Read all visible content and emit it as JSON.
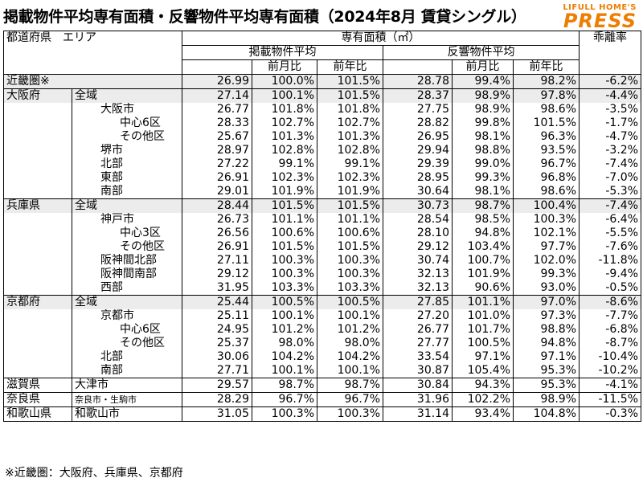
{
  "title": "掲載物件平均専有面積・反響物件平均専有面積（2024年8月 賃貸シングル）",
  "logo": {
    "top": "LIFULL HOME'S",
    "main": "PRESS",
    "color": "#ef7d00"
  },
  "header": {
    "col_region": "都道府県　エリア",
    "col_area": "専有面積（㎡）",
    "col_listed": "掲載物件平均",
    "col_inquiry": "反響物件平均",
    "col_mom": "前月比",
    "col_yoy": "前年比",
    "col_gap": "乖離率"
  },
  "rows": [
    {
      "pref": "近畿圏※",
      "area": "",
      "listed": "26.99",
      "l_mom": "100.0%",
      "l_yoy": "101.5%",
      "inq": "28.78",
      "i_mom": "99.4%",
      "i_yoy": "98.2%",
      "gap": "-6.2%"
    },
    {
      "pref": "大阪府",
      "area": "全域",
      "listed": "27.14",
      "l_mom": "100.1%",
      "l_yoy": "101.5%",
      "inq": "28.37",
      "i_mom": "98.9%",
      "i_yoy": "97.8%",
      "gap": "-4.4%"
    },
    {
      "pref": "",
      "area": "大阪市",
      "listed": "26.77",
      "l_mom": "101.8%",
      "l_yoy": "101.8%",
      "inq": "27.75",
      "i_mom": "98.9%",
      "i_yoy": "98.6%",
      "gap": "-3.5%"
    },
    {
      "pref": "",
      "area": "中心6区",
      "listed": "28.33",
      "l_mom": "102.7%",
      "l_yoy": "102.7%",
      "inq": "28.82",
      "i_mom": "99.8%",
      "i_yoy": "101.5%",
      "gap": "-1.7%"
    },
    {
      "pref": "",
      "area": "その他区",
      "listed": "25.67",
      "l_mom": "101.3%",
      "l_yoy": "101.3%",
      "inq": "26.95",
      "i_mom": "98.1%",
      "i_yoy": "96.3%",
      "gap": "-4.7%"
    },
    {
      "pref": "",
      "area": "堺市",
      "listed": "28.97",
      "l_mom": "102.8%",
      "l_yoy": "102.8%",
      "inq": "29.94",
      "i_mom": "98.8%",
      "i_yoy": "93.5%",
      "gap": "-3.2%"
    },
    {
      "pref": "",
      "area": "北部",
      "listed": "27.22",
      "l_mom": "99.1%",
      "l_yoy": "99.1%",
      "inq": "29.39",
      "i_mom": "99.0%",
      "i_yoy": "96.7%",
      "gap": "-7.4%"
    },
    {
      "pref": "",
      "area": "東部",
      "listed": "26.91",
      "l_mom": "102.3%",
      "l_yoy": "102.3%",
      "inq": "28.95",
      "i_mom": "99.3%",
      "i_yoy": "96.8%",
      "gap": "-7.0%"
    },
    {
      "pref": "",
      "area": "南部",
      "listed": "29.01",
      "l_mom": "101.9%",
      "l_yoy": "101.9%",
      "inq": "30.64",
      "i_mom": "98.1%",
      "i_yoy": "98.6%",
      "gap": "-5.3%"
    },
    {
      "pref": "兵庫県",
      "area": "全域",
      "listed": "28.44",
      "l_mom": "101.5%",
      "l_yoy": "101.5%",
      "inq": "30.73",
      "i_mom": "98.7%",
      "i_yoy": "100.4%",
      "gap": "-7.4%"
    },
    {
      "pref": "",
      "area": "神戸市",
      "listed": "26.73",
      "l_mom": "101.1%",
      "l_yoy": "101.1%",
      "inq": "28.54",
      "i_mom": "98.5%",
      "i_yoy": "100.3%",
      "gap": "-6.4%"
    },
    {
      "pref": "",
      "area": "中心3区",
      "listed": "26.56",
      "l_mom": "100.6%",
      "l_yoy": "100.6%",
      "inq": "28.10",
      "i_mom": "94.8%",
      "i_yoy": "102.1%",
      "gap": "-5.5%"
    },
    {
      "pref": "",
      "area": "その他区",
      "listed": "26.91",
      "l_mom": "101.5%",
      "l_yoy": "101.5%",
      "inq": "29.12",
      "i_mom": "103.4%",
      "i_yoy": "97.7%",
      "gap": "-7.6%"
    },
    {
      "pref": "",
      "area": "阪神間北部",
      "listed": "27.11",
      "l_mom": "100.3%",
      "l_yoy": "100.3%",
      "inq": "30.74",
      "i_mom": "100.7%",
      "i_yoy": "102.0%",
      "gap": "-11.8%"
    },
    {
      "pref": "",
      "area": "阪神間南部",
      "listed": "29.12",
      "l_mom": "100.3%",
      "l_yoy": "100.3%",
      "inq": "32.13",
      "i_mom": "101.9%",
      "i_yoy": "99.3%",
      "gap": "-9.4%"
    },
    {
      "pref": "",
      "area": "西部",
      "listed": "31.95",
      "l_mom": "103.3%",
      "l_yoy": "103.3%",
      "inq": "32.13",
      "i_mom": "90.6%",
      "i_yoy": "93.0%",
      "gap": "-0.5%"
    },
    {
      "pref": "京都府",
      "area": "全域",
      "listed": "25.44",
      "l_mom": "100.5%",
      "l_yoy": "100.5%",
      "inq": "27.85",
      "i_mom": "101.1%",
      "i_yoy": "97.0%",
      "gap": "-8.6%"
    },
    {
      "pref": "",
      "area": "京都市",
      "listed": "25.11",
      "l_mom": "100.1%",
      "l_yoy": "100.1%",
      "inq": "27.20",
      "i_mom": "101.0%",
      "i_yoy": "97.3%",
      "gap": "-7.7%"
    },
    {
      "pref": "",
      "area": "中心6区",
      "listed": "24.95",
      "l_mom": "101.2%",
      "l_yoy": "101.2%",
      "inq": "26.77",
      "i_mom": "101.7%",
      "i_yoy": "98.8%",
      "gap": "-6.8%"
    },
    {
      "pref": "",
      "area": "その他区",
      "listed": "25.37",
      "l_mom": "98.0%",
      "l_yoy": "98.0%",
      "inq": "27.77",
      "i_mom": "100.5%",
      "i_yoy": "94.8%",
      "gap": "-8.7%"
    },
    {
      "pref": "",
      "area": "北部",
      "listed": "30.06",
      "l_mom": "104.2%",
      "l_yoy": "104.2%",
      "inq": "33.54",
      "i_mom": "97.1%",
      "i_yoy": "97.1%",
      "gap": "-10.4%"
    },
    {
      "pref": "",
      "area": "南部",
      "listed": "27.71",
      "l_mom": "100.1%",
      "l_yoy": "100.1%",
      "inq": "30.87",
      "i_mom": "105.4%",
      "i_yoy": "95.3%",
      "gap": "-10.2%"
    },
    {
      "pref": "滋賀県",
      "area": "大津市",
      "listed": "29.57",
      "l_mom": "98.7%",
      "l_yoy": "98.7%",
      "inq": "30.84",
      "i_mom": "94.3%",
      "i_yoy": "95.3%",
      "gap": "-4.1%"
    },
    {
      "pref": "奈良県",
      "area": "奈良市・生駒市",
      "listed": "28.29",
      "l_mom": "96.7%",
      "l_yoy": "96.7%",
      "inq": "31.96",
      "i_mom": "102.2%",
      "i_yoy": "98.9%",
      "gap": "-11.5%"
    },
    {
      "pref": "和歌山県",
      "area": "和歌山市",
      "listed": "31.05",
      "l_mom": "100.3%",
      "l_yoy": "100.3%",
      "inq": "31.14",
      "i_mom": "93.4%",
      "i_yoy": "104.8%",
      "gap": "-0.3%"
    }
  ],
  "footnote": "※近畿圏：大阪府、兵庫県、京都府"
}
